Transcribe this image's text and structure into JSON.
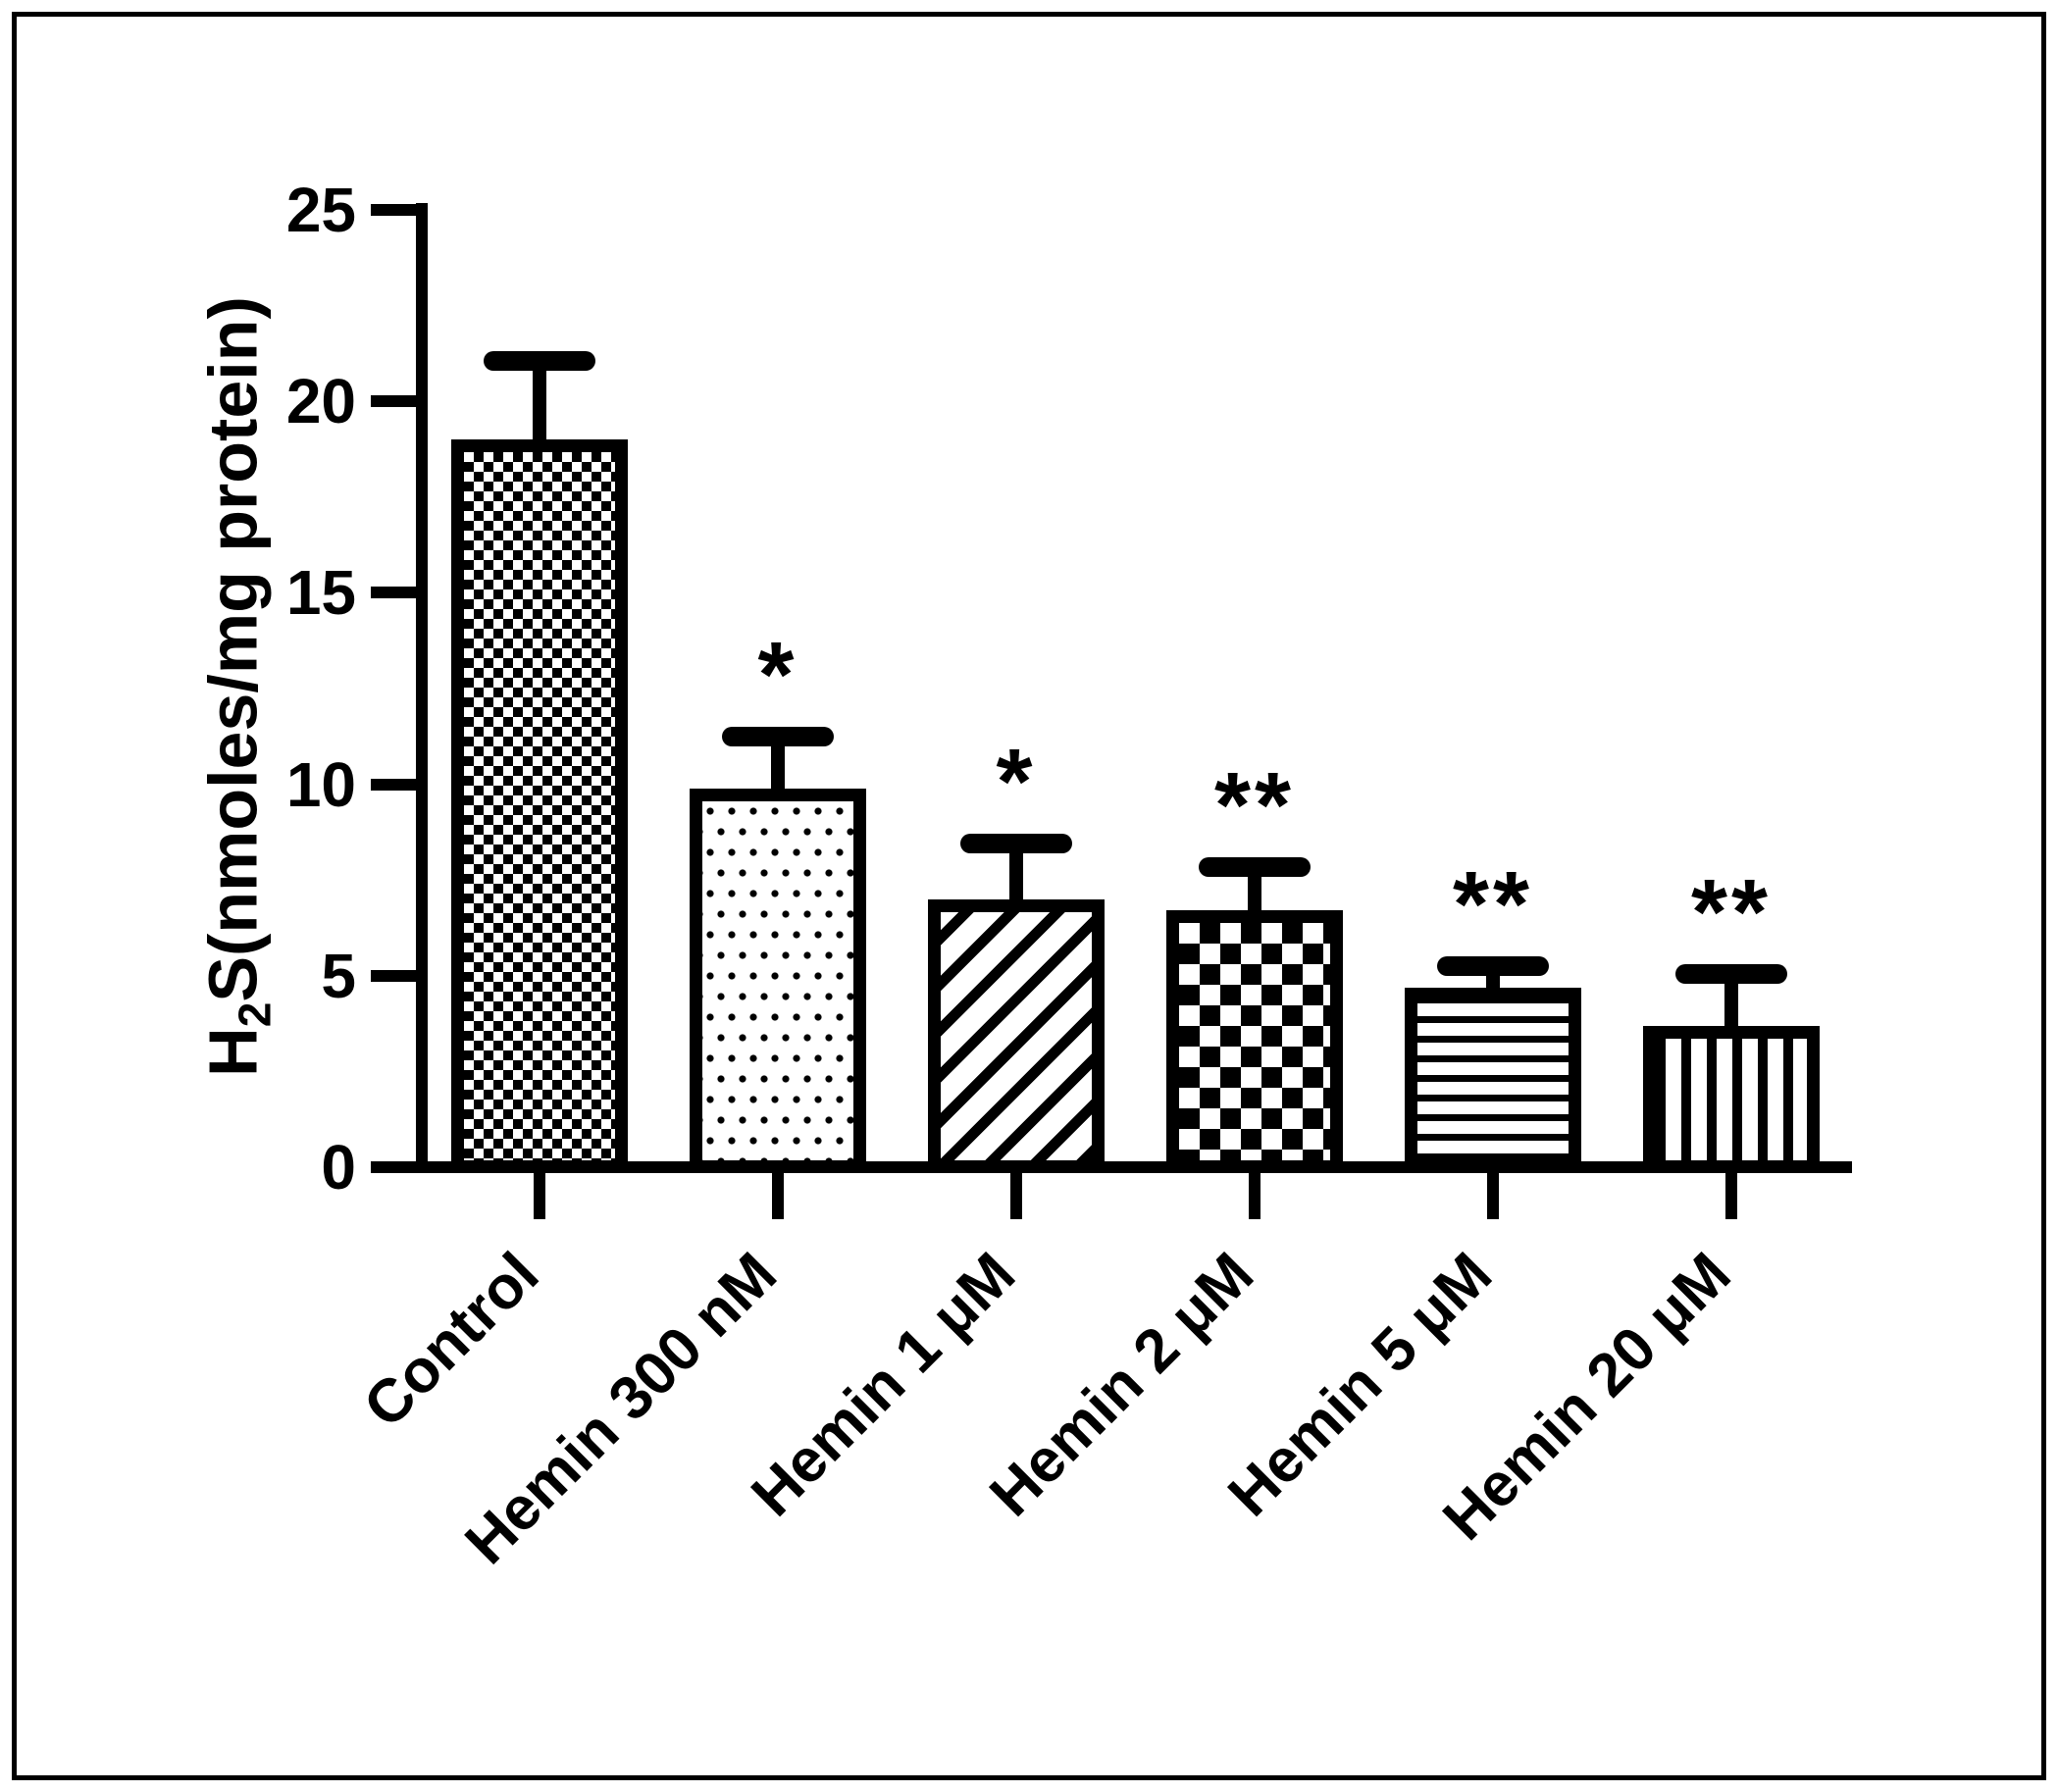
{
  "figure": {
    "background": "#ffffff",
    "frame_color": "#000000",
    "ink_color": "#000000"
  },
  "chart_data": {
    "type": "bar",
    "title": "",
    "xlabel": "",
    "ylabel": "H2S(nmoles/mg protein)",
    "ylabel_parts": {
      "base": "H",
      "sub": "2",
      "rest": "S(nmoles/mg protein)"
    },
    "ylim": [
      0,
      25
    ],
    "yticks": [
      0,
      5,
      10,
      15,
      20,
      25
    ],
    "grid": false,
    "legend": "none",
    "categories": [
      "Control",
      "Hemin 300 nM",
      "Hemin 1 μM",
      "Hemin 2 μM",
      "Hemin 5 μM",
      "Hemin 20 μM"
    ],
    "values": [
      19.0,
      9.9,
      7.0,
      6.7,
      4.7,
      3.7
    ],
    "upper_error": [
      2.3,
      1.6,
      1.7,
      1.4,
      0.8,
      1.6
    ],
    "error_top": [
      21.3,
      11.5,
      8.7,
      8.1,
      5.5,
      5.3
    ],
    "significance": [
      "",
      "*",
      "*",
      "**",
      "**",
      "**"
    ],
    "bar_fill": "#ffffff",
    "bar_edge": "#000000",
    "bar_patterns": [
      "fine-checker",
      "dots",
      "diagonal-stripes",
      "large-checker",
      "horizontal-stripes",
      "vertical-stripes"
    ]
  }
}
